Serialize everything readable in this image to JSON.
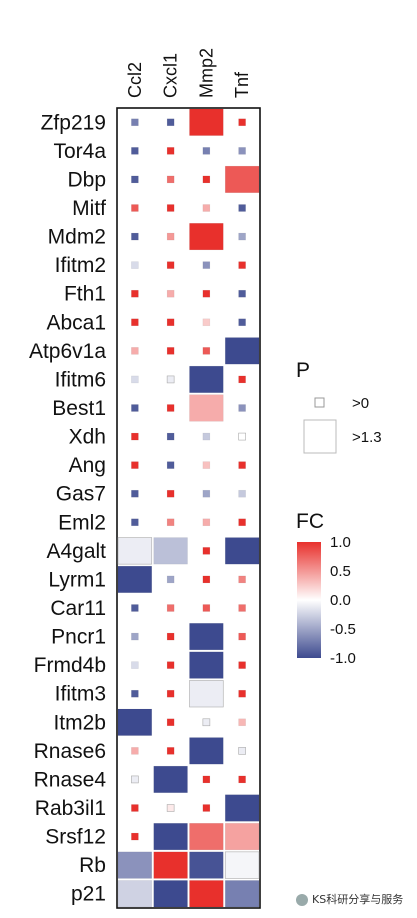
{
  "chart_data": {
    "type": "heatmap",
    "columns": [
      "Ccl2",
      "Cxcl1",
      "Mmp2",
      "Tnf"
    ],
    "rows": [
      "Zfp219",
      "Tor4a",
      "Dbp",
      "Mitf",
      "Mdm2",
      "Ifitm2",
      "Fth1",
      "Abca1",
      "Atp6v1a",
      "Ifitm6",
      "Best1",
      "Xdh",
      "Ang",
      "Gas7",
      "Eml2",
      "A4galt",
      "Lyrm1",
      "Car11",
      "Pncr1",
      "Frmd4b",
      "Ifitm3",
      "Itm2b",
      "Rnase6",
      "Rnase4",
      "Rab3il1",
      "Srsf12",
      "Rb",
      "p21"
    ],
    "cells": [
      [
        [
          -0.7,
          0.05
        ],
        [
          -0.9,
          0.05
        ],
        [
          1.0,
          1.3
        ],
        [
          1.0,
          0.05
        ]
      ],
      [
        [
          -0.9,
          0.05
        ],
        [
          1.0,
          0.05
        ],
        [
          -0.7,
          0.05
        ],
        [
          -0.6,
          0.05
        ]
      ],
      [
        [
          -0.9,
          0.05
        ],
        [
          0.7,
          0.05
        ],
        [
          1.0,
          0.05
        ],
        [
          0.8,
          1.3
        ]
      ],
      [
        [
          0.8,
          0.05
        ],
        [
          1.0,
          0.05
        ],
        [
          0.4,
          0.05
        ],
        [
          -0.9,
          0.05
        ]
      ],
      [
        [
          -0.9,
          0.05
        ],
        [
          0.5,
          0.05
        ],
        [
          1.0,
          1.3
        ],
        [
          -0.5,
          0.05
        ]
      ],
      [
        [
          -0.2,
          0.05
        ],
        [
          1.0,
          0.05
        ],
        [
          -0.6,
          0.05
        ],
        [
          1.0,
          0.05
        ]
      ],
      [
        [
          1.0,
          0.05
        ],
        [
          0.4,
          0.05
        ],
        [
          1.0,
          0.05
        ],
        [
          -0.9,
          0.05
        ]
      ],
      [
        [
          1.0,
          0.05
        ],
        [
          1.0,
          0.05
        ],
        [
          0.25,
          0.05
        ],
        [
          -0.9,
          0.05
        ]
      ],
      [
        [
          0.4,
          0.05
        ],
        [
          1.0,
          0.05
        ],
        [
          0.8,
          0.05
        ],
        [
          -1.0,
          1.3
        ]
      ],
      [
        [
          -0.2,
          0.05
        ],
        [
          -0.1,
          0.05
        ],
        [
          -1.0,
          1.3
        ],
        [
          1.0,
          0.05
        ]
      ],
      [
        [
          -0.9,
          0.05
        ],
        [
          1.0,
          0.05
        ],
        [
          0.4,
          1.3
        ],
        [
          -0.6,
          0.05
        ]
      ],
      [
        [
          1.0,
          0.05
        ],
        [
          -0.9,
          0.05
        ],
        [
          -0.3,
          0.05
        ],
        [
          0.0,
          0.05
        ]
      ],
      [
        [
          1.0,
          0.05
        ],
        [
          -0.9,
          0.05
        ],
        [
          0.3,
          0.05
        ],
        [
          1.0,
          0.05
        ]
      ],
      [
        [
          -0.9,
          0.05
        ],
        [
          1.0,
          0.05
        ],
        [
          -0.5,
          0.05
        ],
        [
          -0.3,
          0.05
        ]
      ],
      [
        [
          -0.9,
          0.05
        ],
        [
          0.6,
          0.05
        ],
        [
          0.4,
          0.05
        ],
        [
          1.0,
          0.05
        ]
      ],
      [
        [
          -0.1,
          1.3
        ],
        [
          -0.35,
          1.3
        ],
        [
          1.0,
          0.05
        ],
        [
          -1.0,
          1.3
        ]
      ],
      [
        [
          -1.0,
          1.3
        ],
        [
          -0.5,
          0.05
        ],
        [
          1.0,
          0.05
        ],
        [
          0.6,
          0.05
        ]
      ],
      [
        [
          -0.9,
          0.05
        ],
        [
          0.7,
          0.05
        ],
        [
          0.8,
          0.05
        ],
        [
          0.7,
          0.05
        ]
      ],
      [
        [
          -0.5,
          0.05
        ],
        [
          1.0,
          0.05
        ],
        [
          -1.0,
          1.3
        ],
        [
          0.8,
          0.05
        ]
      ],
      [
        [
          -0.2,
          0.05
        ],
        [
          1.0,
          0.05
        ],
        [
          -1.0,
          1.3
        ],
        [
          1.0,
          0.05
        ]
      ],
      [
        [
          -0.9,
          0.05
        ],
        [
          1.0,
          0.05
        ],
        [
          -0.1,
          1.3
        ],
        [
          1.0,
          0.05
        ]
      ],
      [
        [
          -1.0,
          1.3
        ],
        [
          1.0,
          0.05
        ],
        [
          -0.1,
          0.05
        ],
        [
          0.35,
          0.05
        ]
      ],
      [
        [
          0.4,
          0.05
        ],
        [
          1.0,
          0.05
        ],
        [
          -1.0,
          1.3
        ],
        [
          -0.1,
          0.05
        ]
      ],
      [
        [
          -0.1,
          0.05
        ],
        [
          -1.0,
          1.3
        ],
        [
          1.0,
          0.05
        ],
        [
          1.0,
          0.05
        ]
      ],
      [
        [
          1.0,
          0.05
        ],
        [
          0.1,
          0.05
        ],
        [
          1.0,
          0.05
        ],
        [
          -1.0,
          1.3
        ]
      ],
      [
        [
          1.0,
          0.05
        ],
        [
          -1.0,
          1.3
        ],
        [
          0.7,
          1.3
        ],
        [
          0.45,
          1.3
        ]
      ],
      [
        [
          -0.6,
          1.3
        ],
        [
          1.0,
          1.3
        ],
        [
          -0.95,
          1.3
        ],
        [
          -0.05,
          1.3
        ]
      ],
      [
        [
          -0.25,
          1.3
        ],
        [
          -1.0,
          1.3
        ],
        [
          1.0,
          1.3
        ],
        [
          -0.7,
          1.3
        ]
      ]
    ],
    "legend_p": {
      "title": "P",
      "labels": [
        ">0",
        ">1.3"
      ]
    },
    "legend_fc": {
      "title": "FC",
      "ticks": [
        "1.0",
        "0.5",
        "0.0",
        "-0.5",
        "-1.0"
      ],
      "range": [
        -1.0,
        1.0
      ]
    },
    "colors": {
      "low": "#3d4a8f",
      "mid": "#ffffff",
      "high": "#e8302c"
    }
  },
  "watermark": "KS科研分享与服务"
}
